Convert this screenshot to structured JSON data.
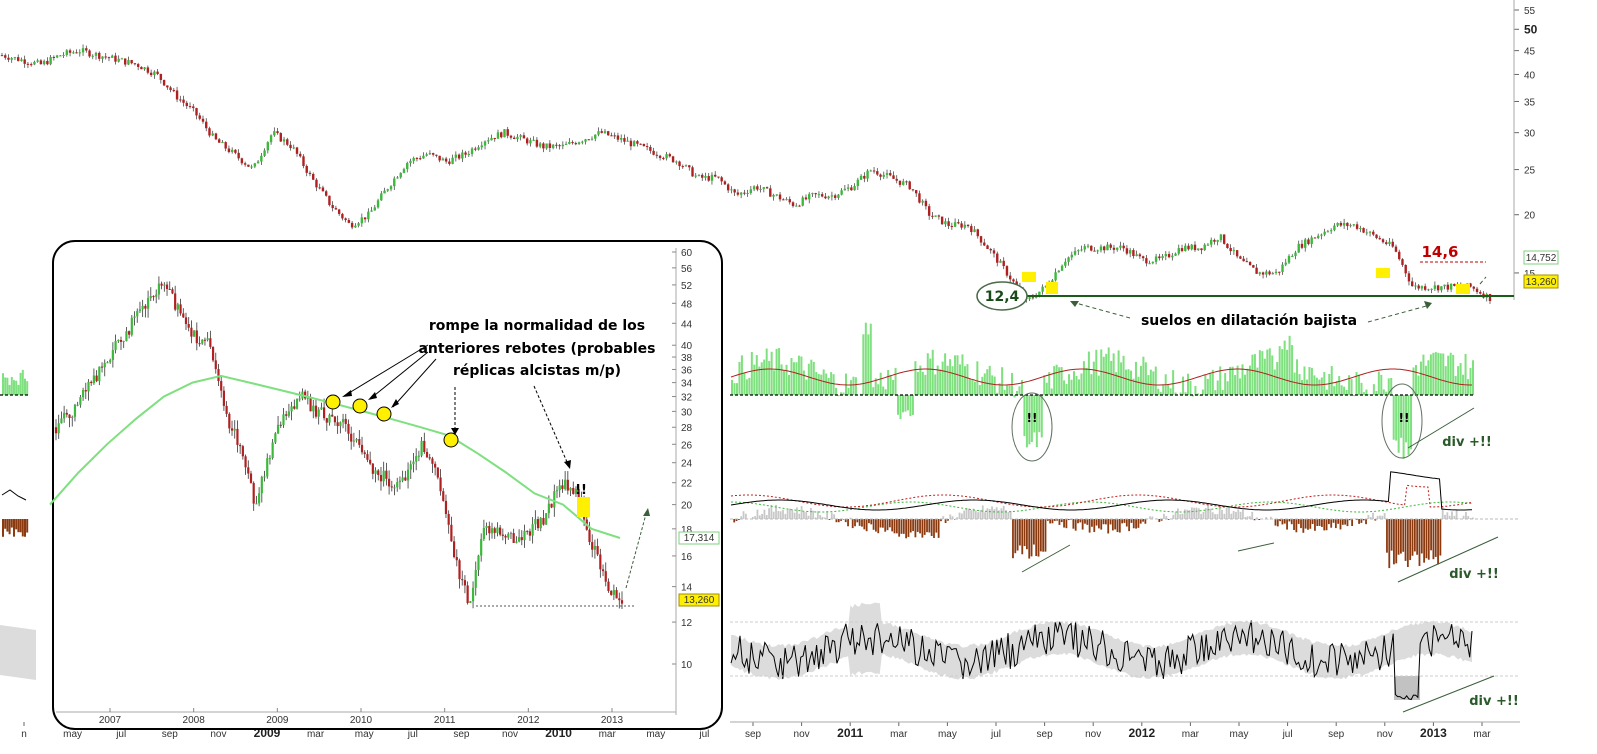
{
  "chart_data": [
    {
      "type": "candlestick",
      "name_ref": "main-price-chart",
      "price_scale": "log",
      "ylim": [
        10,
        55
      ],
      "y_ticks": [
        "15",
        "20",
        "25",
        "30",
        "35",
        "40",
        "45",
        "50",
        "55"
      ],
      "x_ticks": [
        "n",
        "may",
        "jul",
        "sep",
        "nov",
        "2009",
        "mar",
        "may",
        "jul",
        "sep",
        "nov",
        "2010",
        "mar",
        "may",
        "jul",
        "sep",
        "nov",
        "2011",
        "mar",
        "may",
        "jul",
        "sep",
        "nov",
        "2012",
        "mar",
        "may",
        "jul",
        "sep",
        "nov",
        "2013",
        "mar"
      ],
      "x_tick_bold": [
        "2009",
        "2010",
        "2011",
        "2012",
        "2013"
      ],
      "series": [
        {
          "name": "price",
          "values": [
            44,
            43,
            42,
            44,
            45,
            44,
            43,
            42,
            40,
            36,
            33,
            29,
            27,
            25,
            30,
            28,
            24,
            21,
            19,
            20,
            23,
            26,
            27,
            26,
            27,
            29,
            30,
            29,
            28,
            28,
            29,
            30,
            29,
            28,
            27,
            26,
            24,
            24,
            22,
            23,
            22,
            21,
            22,
            22,
            23,
            25,
            24,
            23,
            20,
            19,
            19,
            17,
            15,
            13,
            14,
            16,
            17,
            17,
            17,
            16,
            16,
            17,
            17,
            18,
            16,
            15,
            15,
            17,
            18,
            19,
            19,
            18,
            17,
            14,
            14,
            14,
            14,
            13.26
          ]
        }
      ],
      "last_price_label": "13,260",
      "secondary_price_label": "14,752",
      "support_level": "12,4",
      "resistance_level": "14,6",
      "annotations": [
        "suelos en dilatación bajista"
      ]
    },
    {
      "type": "bar",
      "name_ref": "green-histogram-indicator",
      "annotations": [
        "!!",
        "!!",
        "div +!!"
      ]
    },
    {
      "type": "bar",
      "name_ref": "brown-histogram-oscillator",
      "annotations": [
        "div +!!"
      ]
    },
    {
      "type": "line",
      "name_ref": "bottom-band-oscillator",
      "annotations": [
        "div +!!"
      ]
    },
    {
      "type": "candlestick",
      "name_ref": "inset-price-chart",
      "price_scale": "log",
      "ylim": [
        10,
        60
      ],
      "y_ticks": [
        "10",
        "12",
        "14",
        "16",
        "18",
        "20",
        "22",
        "24",
        "26",
        "28",
        "30",
        "32",
        "34",
        "36",
        "38",
        "40",
        "44",
        "48",
        "52",
        "56",
        "60"
      ],
      "x_ticks": [
        "2007",
        "2008",
        "2009",
        "2010",
        "2011",
        "2012",
        "2013"
      ],
      "series": [
        {
          "name": "price",
          "values": [
            28,
            30,
            33,
            36,
            40,
            44,
            48,
            52,
            47,
            42,
            40,
            30,
            26,
            20,
            25,
            30,
            32,
            30,
            29,
            28,
            25,
            23,
            22,
            23,
            26,
            22,
            16,
            13,
            18,
            18,
            17,
            18,
            19,
            22,
            21,
            17,
            14,
            13.26
          ]
        },
        {
          "name": "moving-average",
          "values": [
            20,
            23,
            26,
            29,
            32,
            34,
            35,
            34,
            33,
            32,
            31,
            30,
            29,
            28,
            27,
            25,
            23,
            21,
            20,
            18,
            17.3
          ]
        }
      ],
      "last_price_label": "13,260",
      "ma_price_label": "17,314",
      "annotations": [
        "rompe la normalidad de los",
        "anteriores rebotes (probables",
        "réplicas alcistas m/p)",
        "!!"
      ]
    }
  ]
}
